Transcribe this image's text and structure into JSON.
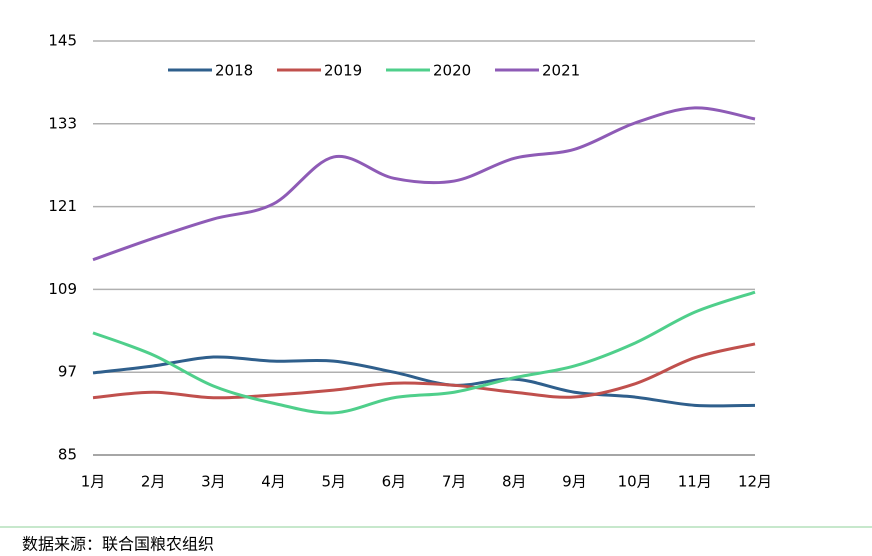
{
  "chart_data": {
    "type": "line",
    "categories": [
      "1月",
      "2月",
      "3月",
      "4月",
      "5月",
      "6月",
      "7月",
      "8月",
      "9月",
      "10月",
      "11月",
      "12月"
    ],
    "series": [
      {
        "name": "2018",
        "color": "#2f5f8c",
        "values": [
          96.9,
          97.9,
          99.2,
          98.6,
          98.6,
          97.0,
          95.1,
          96.0,
          94.1,
          93.4,
          92.2,
          92.2
        ]
      },
      {
        "name": "2019",
        "color": "#c0504d",
        "values": [
          93.3,
          94.1,
          93.3,
          93.7,
          94.4,
          95.4,
          95.1,
          94.1,
          93.4,
          95.3,
          99.1,
          101.1
        ]
      },
      {
        "name": "2020",
        "color": "#4fcf8b",
        "values": [
          102.7,
          99.5,
          95.0,
          92.5,
          91.1,
          93.3,
          94.1,
          96.2,
          97.9,
          101.2,
          105.7,
          108.6
        ]
      },
      {
        "name": "2021",
        "color": "#8e5bb6",
        "values": [
          113.3,
          116.4,
          119.2,
          121.4,
          128.2,
          125.1,
          124.7,
          128.0,
          129.3,
          133.1,
          135.3,
          133.7
        ]
      }
    ],
    "ylim": [
      85,
      145
    ],
    "yticks": [
      85,
      97,
      109,
      121,
      133,
      145
    ],
    "grid": true,
    "legend": "top",
    "source": "数据来源：联合国粮农组织"
  }
}
